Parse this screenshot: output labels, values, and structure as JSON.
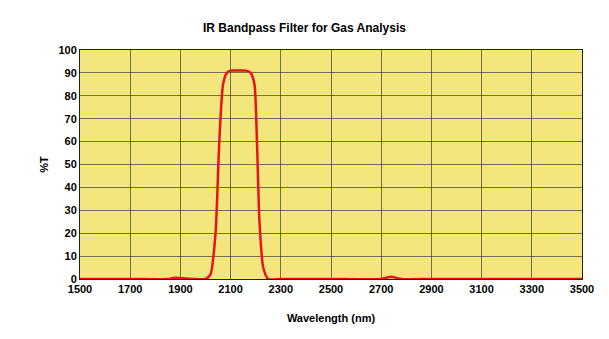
{
  "chart_data": {
    "type": "line",
    "title": "IR Bandpass Filter for Gas Analysis",
    "x_label": "Wavelength (nm)",
    "y_label": "%T",
    "x": [
      1500,
      1700,
      1850,
      1880,
      1950,
      2000,
      2020,
      2040,
      2055,
      2070,
      2085,
      2100,
      2130,
      2160,
      2180,
      2195,
      2205,
      2215,
      2230,
      2250,
      2300,
      2500,
      2700,
      2740,
      2780,
      2900,
      3100,
      3300,
      3500
    ],
    "series": [
      {
        "name": "%T",
        "color": "#e8141b",
        "values": [
          0,
          0,
          0,
          0.5,
          0,
          0,
          2,
          20,
          60,
          85,
          90,
          91,
          91,
          91,
          90,
          85,
          60,
          25,
          5,
          0,
          0,
          0,
          0,
          1,
          0,
          0,
          0,
          0,
          0
        ]
      }
    ],
    "xlim": [
      1500,
      3500
    ],
    "xticks": [
      1500,
      1700,
      1900,
      2100,
      2300,
      2500,
      2700,
      2900,
      3100,
      3300,
      3500
    ],
    "ylim": [
      0,
      100
    ],
    "yticks": [
      0,
      10,
      20,
      30,
      40,
      50,
      60,
      70,
      80,
      90,
      100
    ],
    "grid": true
  }
}
